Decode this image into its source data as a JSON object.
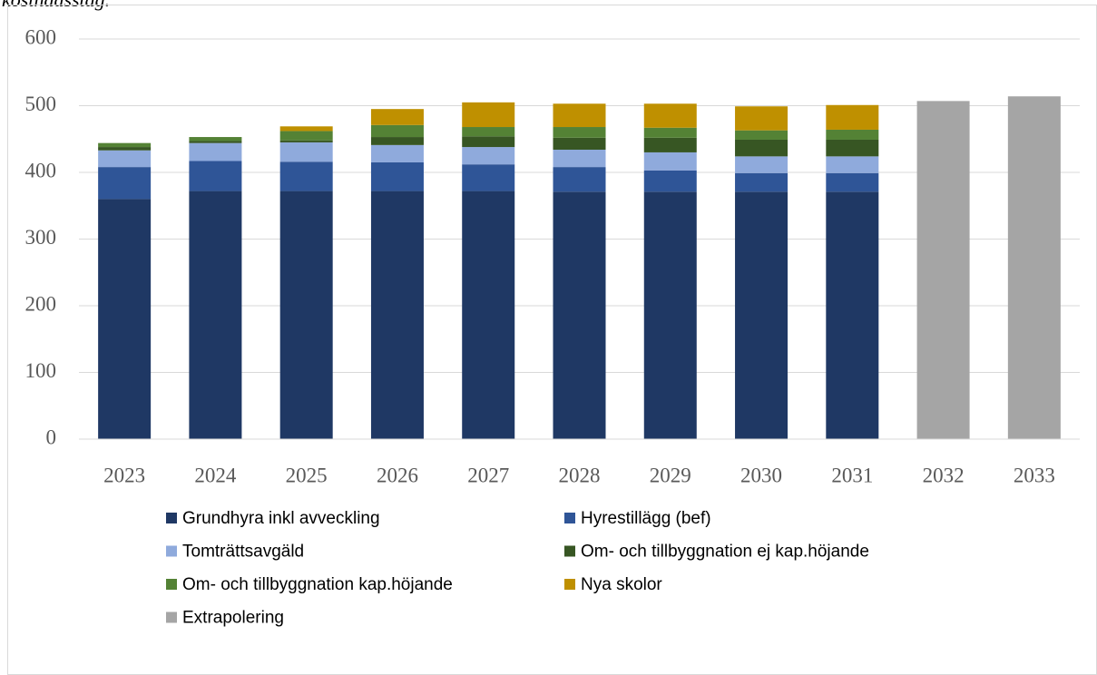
{
  "caption": "kostnadsstag.",
  "chart_data": {
    "type": "stacked_bar",
    "categories": [
      "2023",
      "2024",
      "2025",
      "2026",
      "2027",
      "2028",
      "2029",
      "2030",
      "2031",
      "2032",
      "2033"
    ],
    "series": [
      {
        "name": "Grundhyra inkl avveckling",
        "color": "#1f3864",
        "values": [
          360,
          372,
          372,
          372,
          372,
          371,
          371,
          371,
          371,
          null,
          null
        ]
      },
      {
        "name": "Hyrestillägg (bef)",
        "color": "#2f5597",
        "values": [
          48,
          45,
          44,
          43,
          40,
          37,
          32,
          28,
          28,
          null,
          null
        ]
      },
      {
        "name": "Tomträttsavgäld",
        "color": "#8faadc",
        "values": [
          25,
          27,
          29,
          26,
          26,
          26,
          27,
          25,
          25,
          null,
          null
        ]
      },
      {
        "name": "Om- och tillbyggnation ej kap.höjande",
        "color": "#375623",
        "values": [
          5,
          3,
          3,
          12,
          16,
          18,
          22,
          25,
          25,
          null,
          null
        ]
      },
      {
        "name": "Om- och tillbyggnation kap.höjande",
        "color": "#548235",
        "values": [
          6,
          6,
          14,
          18,
          14,
          16,
          15,
          14,
          15,
          null,
          null
        ]
      },
      {
        "name": "Nya skolor",
        "color": "#bf9000",
        "values": [
          0,
          0,
          7,
          24,
          37,
          35,
          36,
          36,
          37,
          null,
          null
        ]
      },
      {
        "name": "Extrapolering",
        "color": "#a5a5a5",
        "values": [
          null,
          null,
          null,
          null,
          null,
          null,
          null,
          null,
          null,
          507,
          514
        ]
      }
    ],
    "ylim": [
      0,
      600
    ],
    "yticks": [
      0,
      100,
      200,
      300,
      400,
      500,
      600
    ],
    "grid": true
  }
}
